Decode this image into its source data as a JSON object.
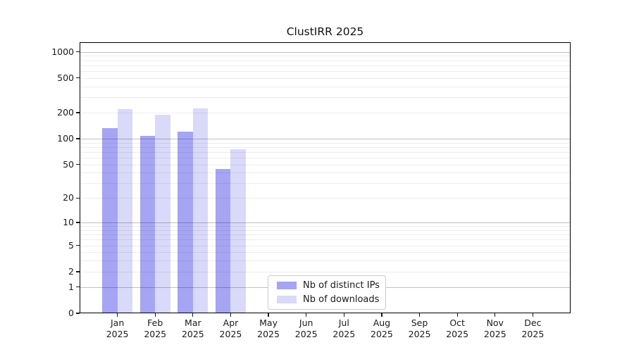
{
  "title": "ClustIRR 2025",
  "chart_data": {
    "type": "bar",
    "title": "ClustIRR 2025",
    "xlabel": "",
    "ylabel": "",
    "yscale": "log10(value+1)",
    "ylim": [
      0,
      1000
    ],
    "yticks": [
      0,
      1,
      2,
      5,
      10,
      20,
      50,
      100,
      200,
      500,
      1000
    ],
    "grid": "horizontal major at 1,10,100,1000 plus faint minors at 2-9 per decade",
    "legend_position": "lower center inside plot",
    "categories": [
      "Jan 2025",
      "Feb 2025",
      "Mar 2025",
      "Apr 2025",
      "May 2025",
      "Jun 2025",
      "Jul 2025",
      "Aug 2025",
      "Sep 2025",
      "Oct 2025",
      "Nov 2025",
      "Dec 2025"
    ],
    "series": [
      {
        "name": "Nb of distinct IPs",
        "color": "#a5a5f4",
        "values": [
          133,
          108,
          121,
          44,
          null,
          null,
          null,
          null,
          null,
          null,
          null,
          null
        ]
      },
      {
        "name": "Nb of downloads",
        "color": "#d9d9f9",
        "values": [
          219,
          187,
          223,
          75,
          null,
          null,
          null,
          null,
          null,
          null,
          null,
          null
        ]
      }
    ]
  },
  "colors": {
    "distinct_ips": "#a5a5f4",
    "downloads": "#d9d9f9",
    "axis": "#000000"
  }
}
